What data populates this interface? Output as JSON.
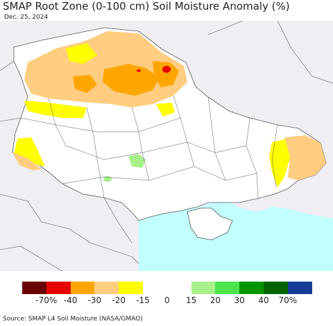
{
  "title": "SMAP Root Zone (0-100 cm) Soil Moisture Anomaly (%)",
  "date": "Dec. 25, 2024",
  "source": "Source: SMAP L4 Soil Moisture (NASA/GMAO)",
  "legend": {
    "colors": [
      "#6b0000",
      "#e60000",
      "#ffa500",
      "#ffcd80",
      "#ffff00",
      "#ffffff",
      "#ffffff",
      "#a8f08c",
      "#4ce54c",
      "#009600",
      "#006400",
      "#143c96"
    ],
    "labels": [
      "-70%",
      "-40",
      "-30",
      "-20",
      "-15",
      "0",
      "15",
      "20",
      "30",
      "40",
      "70%"
    ]
  },
  "map_colors": {
    "land": "#ffffff",
    "outside": "#f0eef3",
    "sea": "#c2ffff",
    "borders": "#555555",
    "dry_light": "#ffcd80",
    "dry_mid": "#ffa500",
    "dry_strong": "#e60000",
    "mild_dry": "#ffff00",
    "wet": "#a8f08c"
  }
}
